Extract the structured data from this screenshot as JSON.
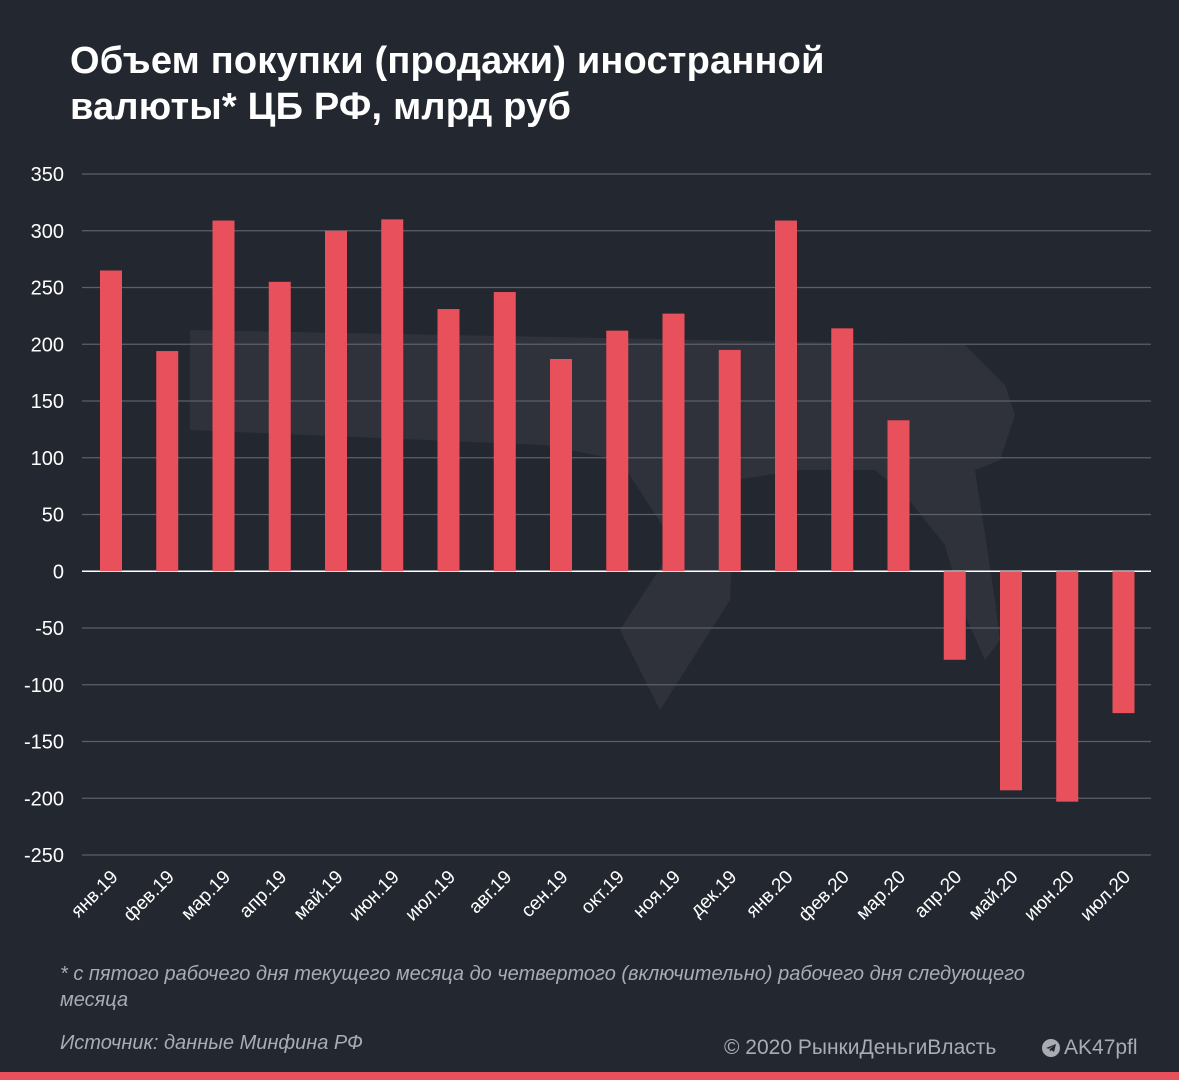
{
  "title": "Объем покупки (продажи) иностранной валюты* ЦБ РФ, млрд руб",
  "footnote": "* с пятого рабочего дня текущего месяца до четвертого (включительно) рабочего дня следующего месяца",
  "source": "Источник: данные Минфина РФ",
  "copyright": "© 2020  РынкиДеньгиВласть",
  "channel": "AK47pfl",
  "icons": {
    "watermark": "rifle-watermark-icon",
    "telegram": "telegram-icon"
  },
  "colors": {
    "background": "#23272f",
    "bar": "#e8505b",
    "grid": "#5b606b",
    "text": "#ffffff",
    "muted": "#a9acb3"
  },
  "chart_data": {
    "type": "bar",
    "categories": [
      "янв.19",
      "фев.19",
      "мар.19",
      "апр.19",
      "май.19",
      "июн.19",
      "июл.19",
      "авг.19",
      "сен.19",
      "окт.19",
      "ноя.19",
      "дек.19",
      "янв.20",
      "фев.20",
      "мар.20",
      "апр.20",
      "май.20",
      "июн.20",
      "июл.20"
    ],
    "values": [
      265,
      194,
      309,
      255,
      300,
      310,
      231,
      246,
      187,
      212,
      227,
      195,
      309,
      214,
      133,
      -78,
      -193,
      -203,
      -125
    ],
    "title": "Объем покупки (продажи) иностранной валюты* ЦБ РФ, млрд руб",
    "ylim": [
      -250,
      350
    ],
    "yticks": [
      350,
      300,
      250,
      200,
      150,
      100,
      50,
      0,
      -50,
      -100,
      -150,
      -200,
      -250
    ],
    "grid": true,
    "legend": "none"
  }
}
